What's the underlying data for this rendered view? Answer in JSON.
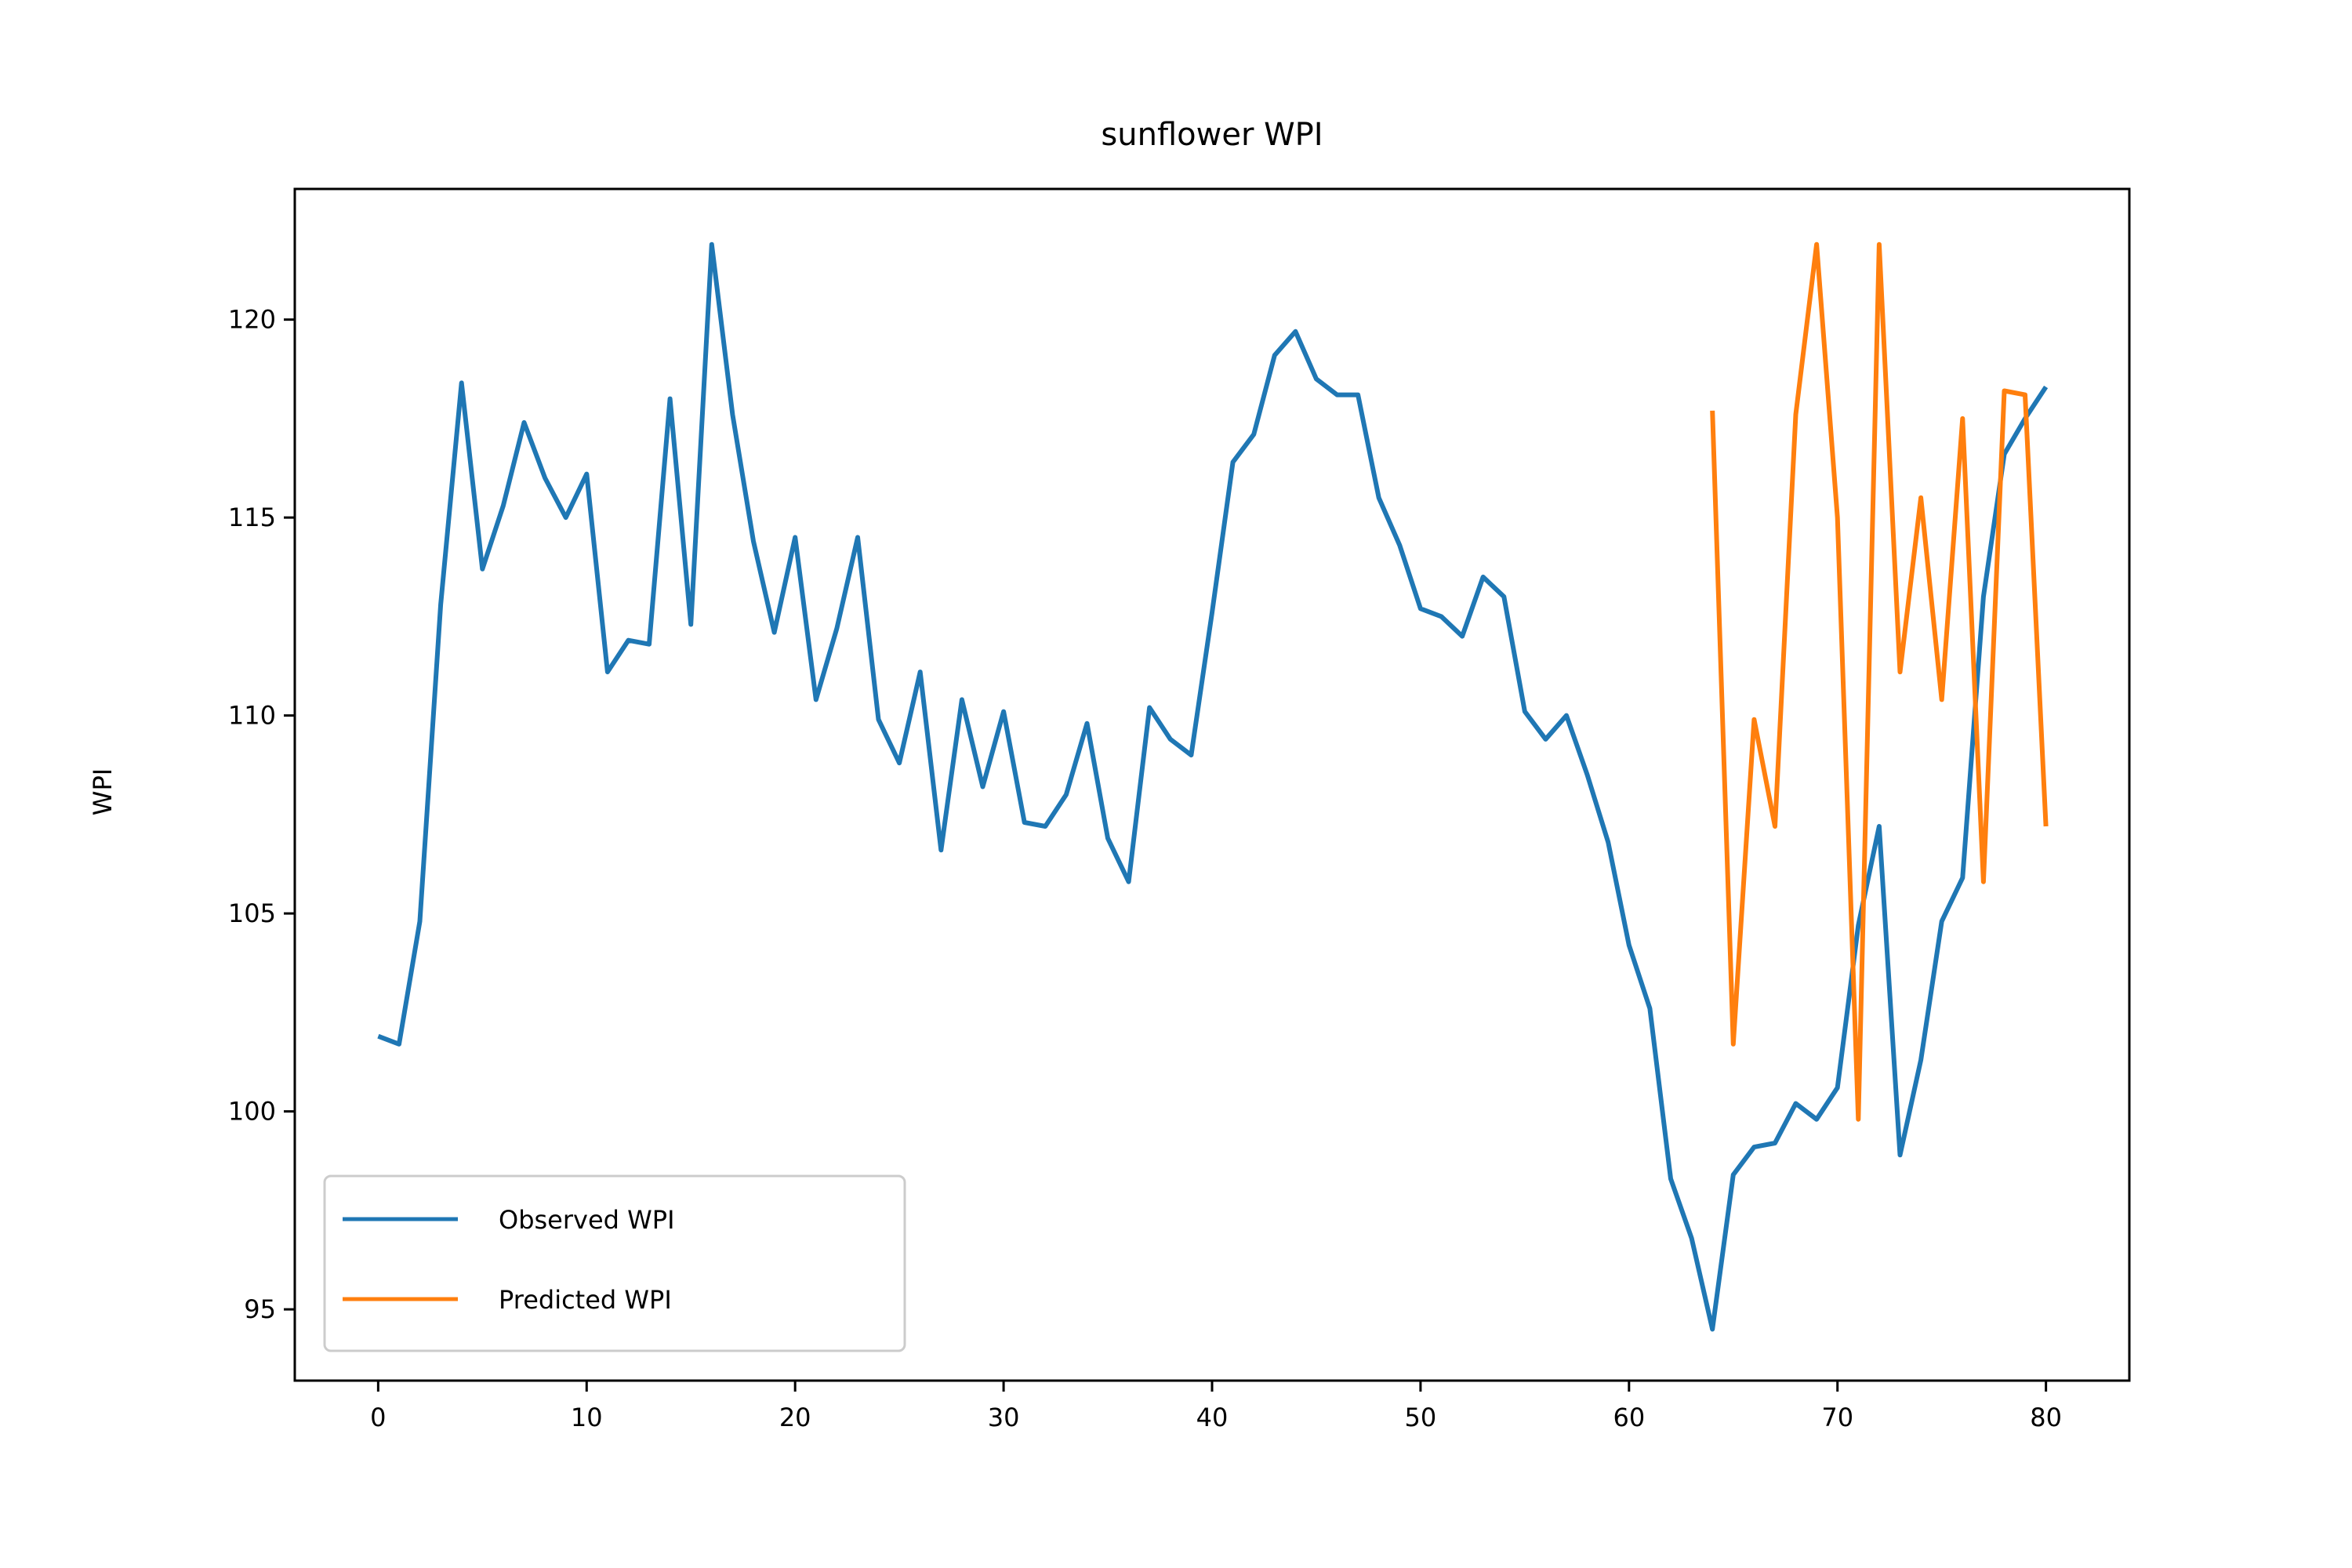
{
  "chart_data": {
    "type": "line",
    "title": "sunflower WPI",
    "xlabel": "",
    "ylabel": "WPI",
    "xlim": [
      -4,
      84
    ],
    "ylim": [
      93.2,
      123.3
    ],
    "x_ticks": [
      0,
      10,
      20,
      30,
      40,
      50,
      60,
      70,
      80
    ],
    "y_ticks": [
      95,
      100,
      105,
      110,
      115,
      120
    ],
    "grid": false,
    "legend_position": "lower-left",
    "series": [
      {
        "name": "Observed WPI",
        "color": "#1f77b4",
        "x": [
          0,
          1,
          2,
          3,
          4,
          5,
          6,
          7,
          8,
          9,
          10,
          11,
          12,
          13,
          14,
          15,
          16,
          17,
          18,
          19,
          20,
          21,
          22,
          23,
          24,
          25,
          26,
          27,
          28,
          29,
          30,
          31,
          32,
          33,
          34,
          35,
          36,
          37,
          38,
          39,
          40,
          41,
          42,
          43,
          44,
          45,
          46,
          47,
          48,
          49,
          50,
          51,
          52,
          53,
          54,
          55,
          56,
          57,
          58,
          59,
          60,
          61,
          62,
          63,
          64,
          65,
          66,
          67,
          68,
          69,
          70,
          71,
          72,
          73,
          74,
          75,
          76,
          77,
          78,
          79,
          80
        ],
        "values": [
          101.9,
          101.7,
          104.8,
          112.8,
          118.4,
          113.7,
          115.3,
          117.4,
          116.0,
          115.0,
          116.1,
          111.1,
          111.9,
          111.8,
          118.0,
          112.3,
          121.9,
          117.6,
          114.4,
          112.1,
          114.5,
          110.4,
          112.2,
          114.5,
          109.9,
          108.8,
          111.1,
          106.6,
          110.4,
          108.2,
          110.1,
          107.3,
          107.2,
          108.0,
          109.8,
          106.9,
          105.8,
          110.2,
          109.4,
          109.0,
          112.6,
          116.4,
          117.1,
          119.1,
          119.7,
          118.5,
          118.1,
          118.1,
          115.5,
          114.3,
          112.7,
          112.5,
          112.0,
          113.5,
          113.0,
          110.1,
          109.4,
          110.0,
          108.5,
          106.8,
          104.2,
          102.6,
          98.3,
          96.8,
          94.5,
          98.4,
          99.1,
          99.2,
          100.2,
          99.8,
          100.6,
          104.7,
          107.2,
          98.9,
          101.3,
          104.8,
          105.9,
          113.0,
          116.6,
          117.5,
          118.3
        ]
      },
      {
        "name": "Predicted WPI",
        "color": "#ff7f0e",
        "x": [
          64,
          65,
          66,
          67,
          68,
          69,
          70,
          71,
          72,
          73,
          74,
          75,
          76,
          77,
          78,
          79,
          80
        ],
        "values": [
          117.7,
          101.7,
          109.9,
          107.2,
          117.6,
          121.9,
          115.0,
          99.8,
          121.9,
          111.1,
          115.5,
          110.4,
          117.5,
          105.8,
          118.2,
          118.1,
          107.2
        ]
      }
    ]
  }
}
